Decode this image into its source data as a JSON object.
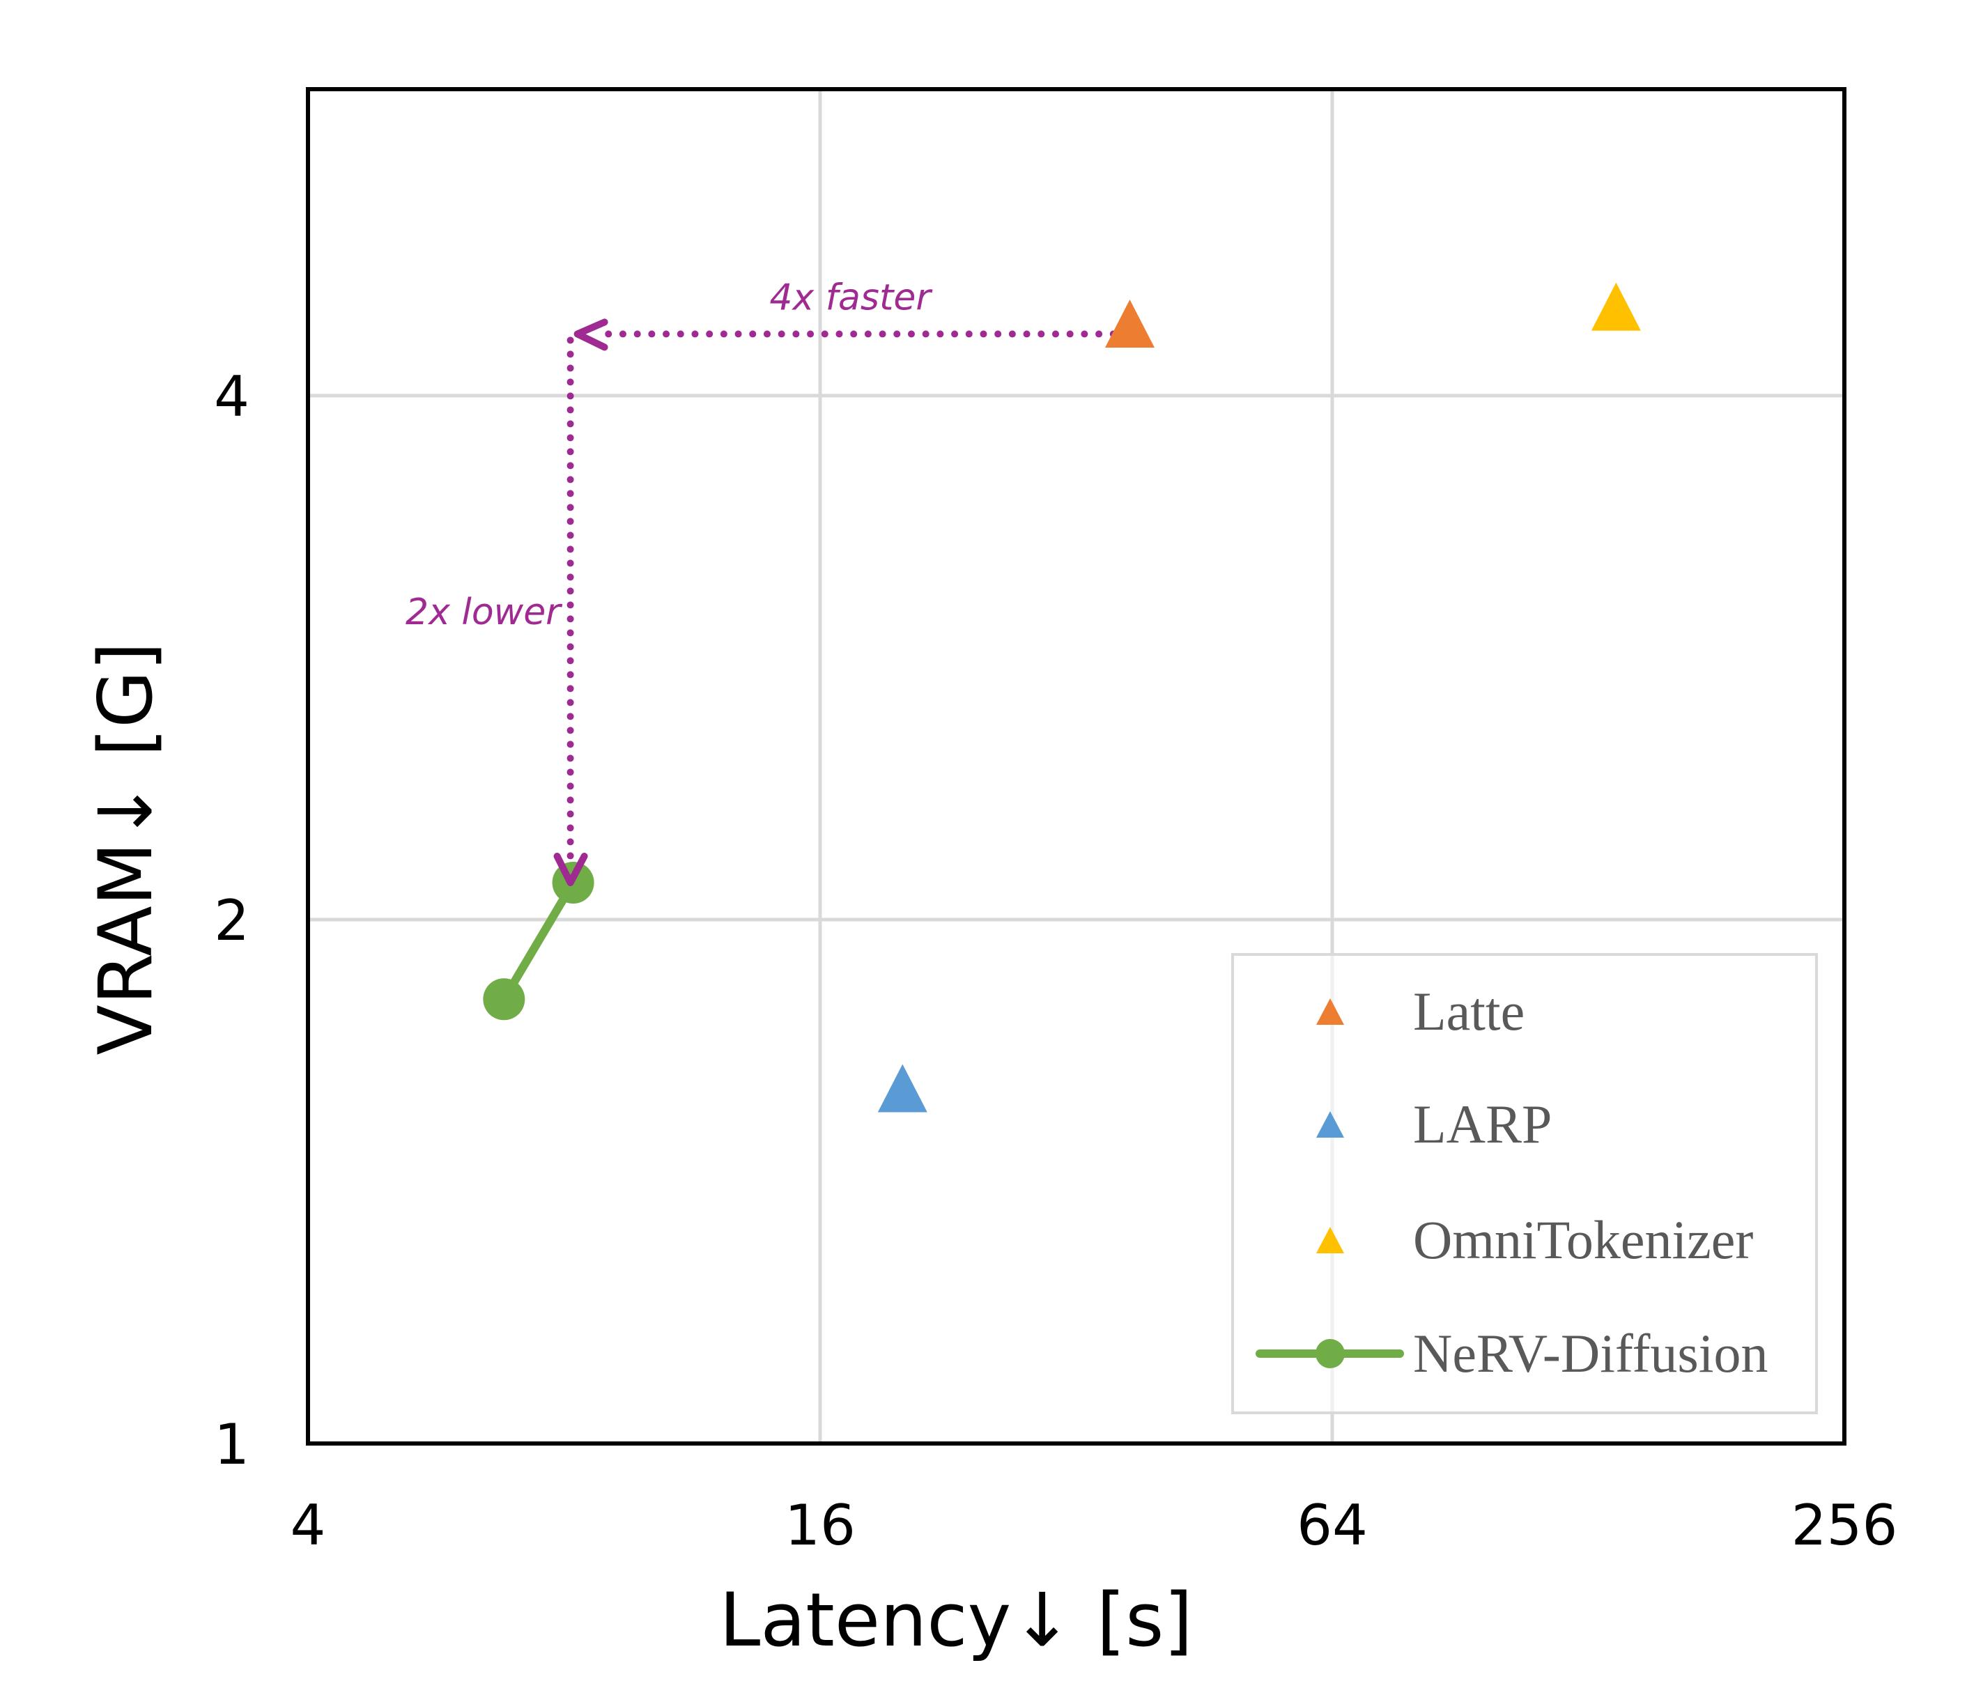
{
  "chart_data": {
    "type": "scatter",
    "title": "",
    "xlabel": "Latency↓ [s]",
    "ylabel": "VRAM↓ [G]",
    "xscale": "log2",
    "yscale": "log2",
    "xlim": [
      4,
      256
    ],
    "ylim": [
      1,
      6
    ],
    "xticks": [
      4,
      16,
      64,
      256
    ],
    "xtick_labels": [
      "4",
      "16",
      "64",
      "256"
    ],
    "yticks": [
      1,
      2,
      4
    ],
    "ytick_labels": [
      "1",
      "2",
      "4"
    ],
    "grid": true,
    "legend_position": "bottom-right",
    "series": [
      {
        "name": "Latte",
        "marker": "triangle",
        "color": "#ED7D31",
        "line": false,
        "points": [
          [
            37,
            4.4
          ]
        ]
      },
      {
        "name": "LARP",
        "marker": "triangle",
        "color": "#5B9BD5",
        "line": false,
        "points": [
          [
            20,
            1.6
          ]
        ]
      },
      {
        "name": "OmniTokenizer",
        "marker": "triangle",
        "color": "#FFC000",
        "line": false,
        "points": [
          [
            138,
            4.5
          ]
        ]
      },
      {
        "name": "NeRV-Diffusion",
        "marker": "circle",
        "color": "#70AD47",
        "line": true,
        "points": [
          [
            6.8,
            1.8
          ],
          [
            8.2,
            2.1
          ]
        ]
      }
    ],
    "annotations": [
      {
        "text": "4x faster",
        "type": "dotted-arrow",
        "direction": "horizontal",
        "from": [
          37,
          4.34
        ],
        "to": [
          8.2,
          4.34
        ],
        "color": "#9E2A92"
      },
      {
        "text": "2x lower",
        "type": "dotted-arrow",
        "direction": "vertical",
        "from": [
          8.2,
          4.34
        ],
        "to": [
          8.2,
          2.1
        ],
        "color": "#9E2A92"
      }
    ]
  }
}
